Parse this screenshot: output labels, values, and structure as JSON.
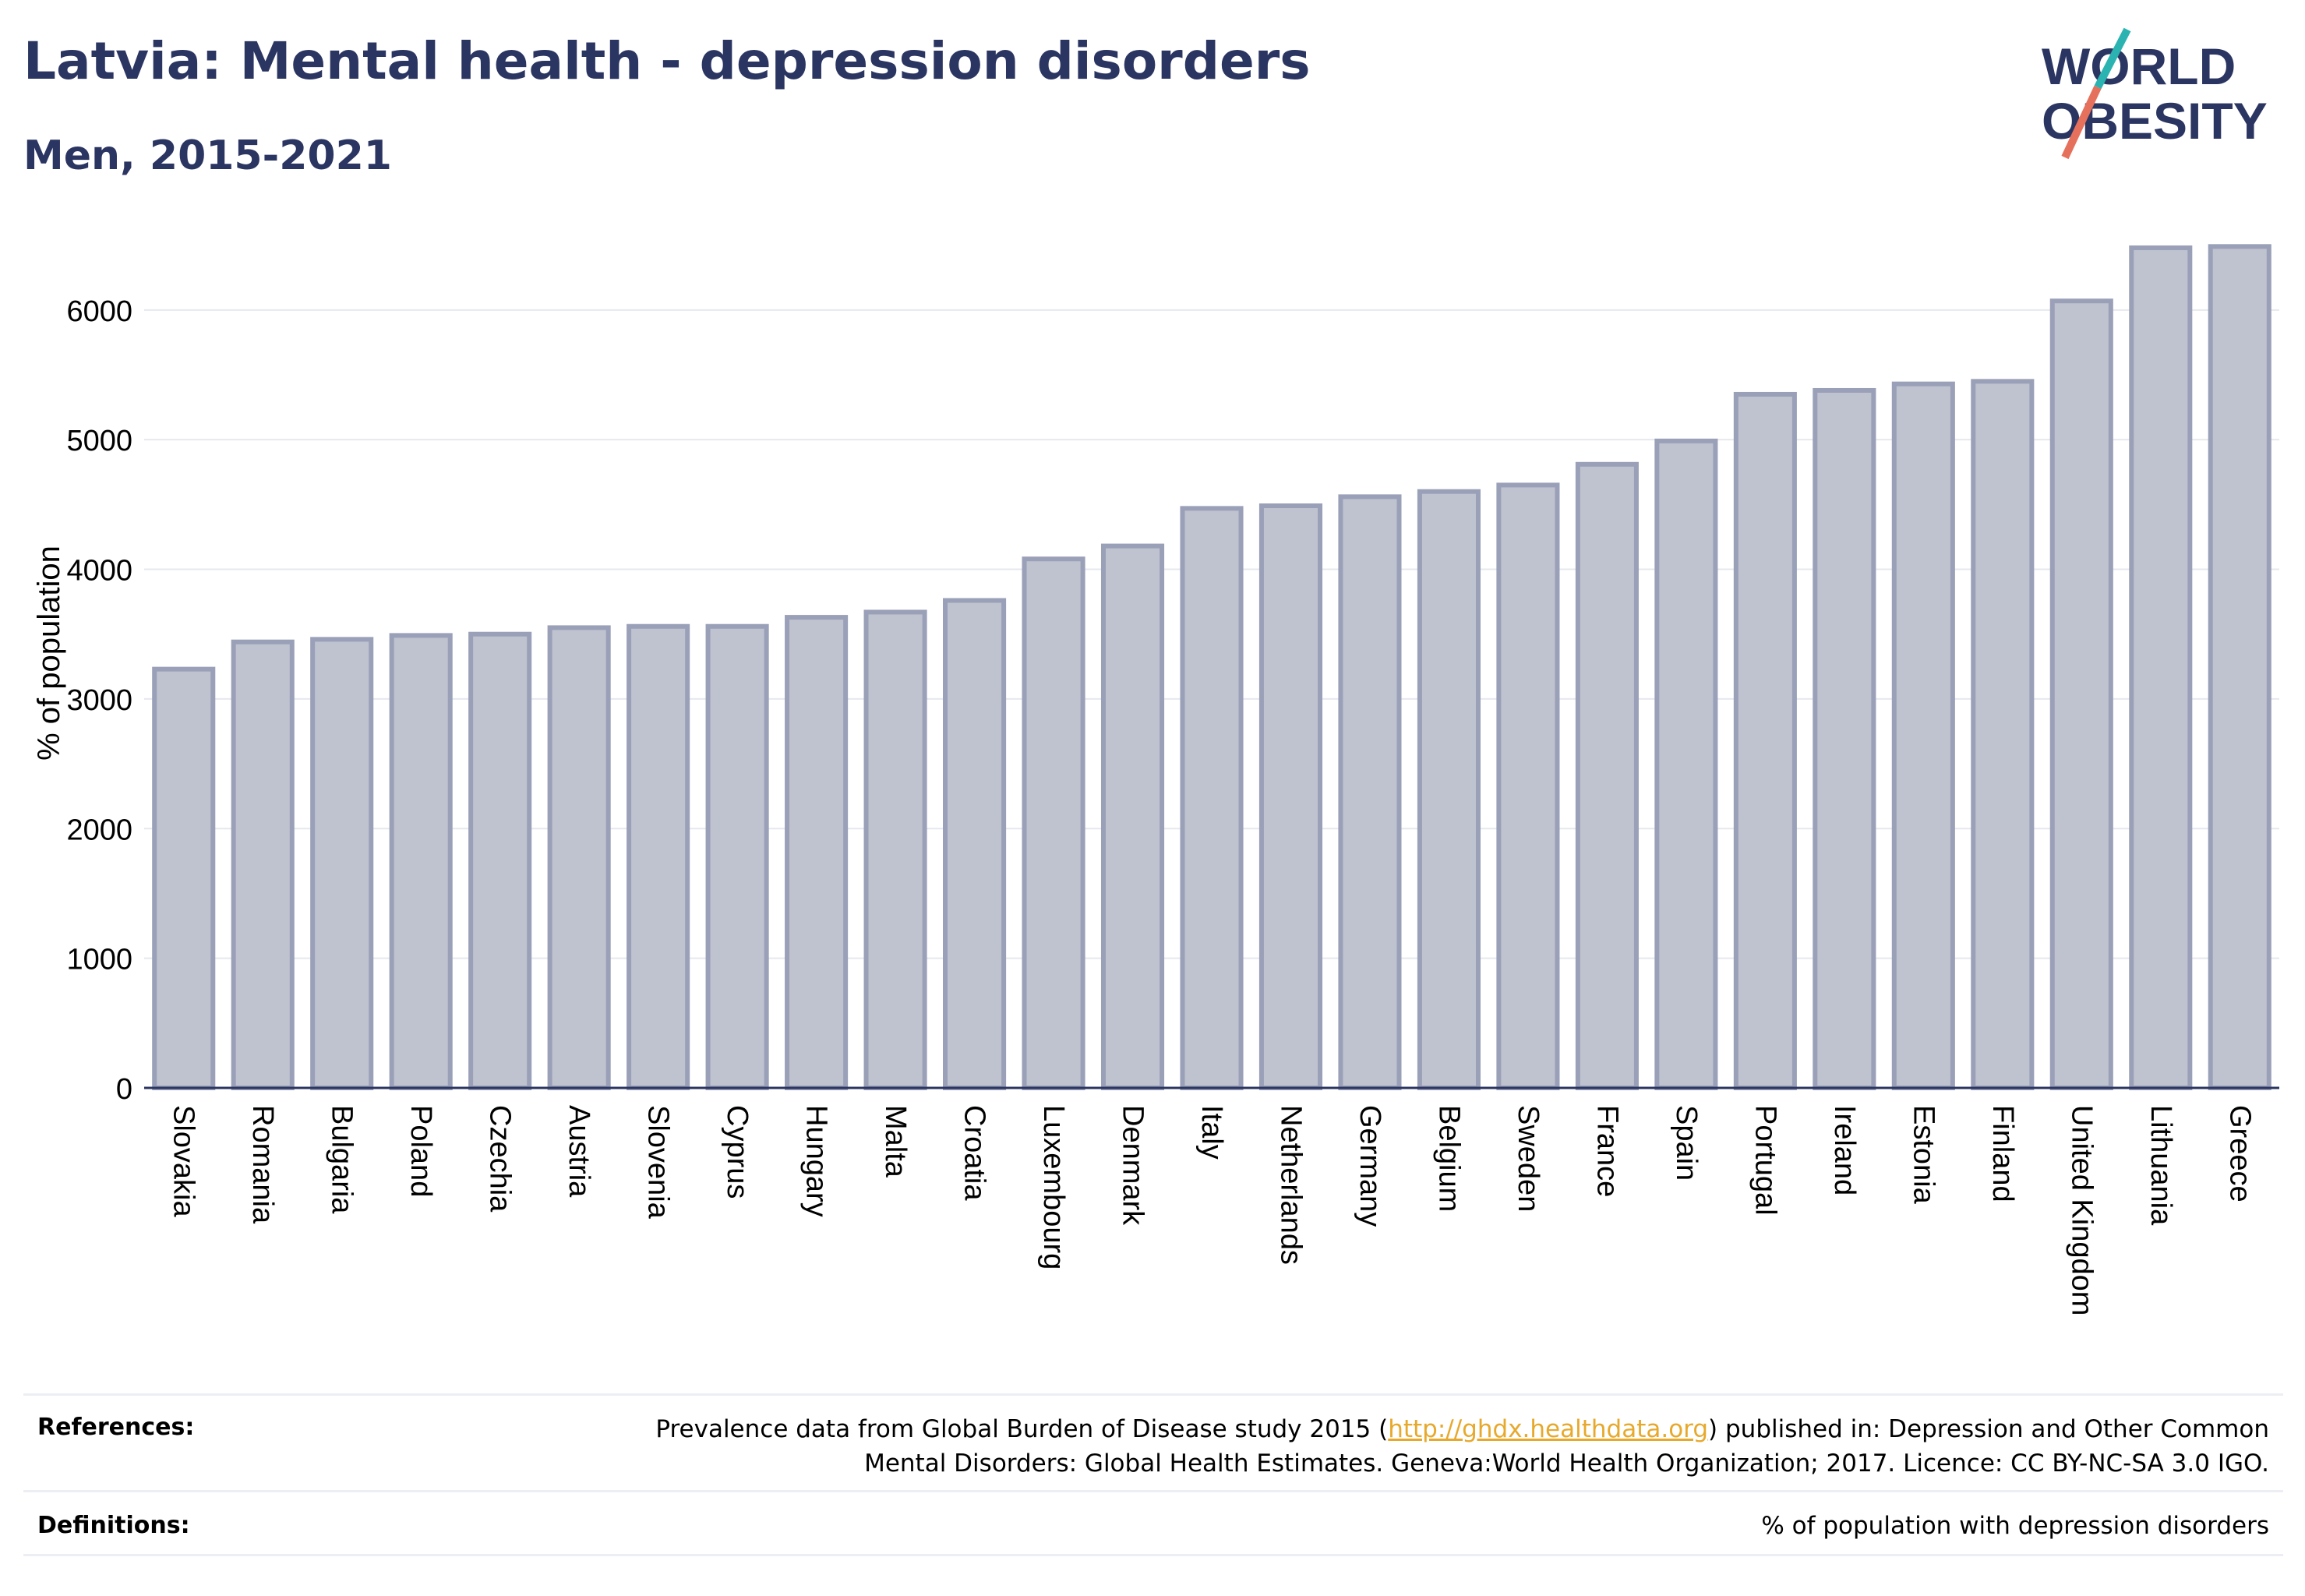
{
  "header": {
    "title": "Latvia: Mental health - depression disorders",
    "subtitle": "Men, 2015-2021"
  },
  "logo": {
    "line1": "WORLD",
    "line2": "OBESITY"
  },
  "colors": {
    "bar_fill": "#bfc2cf",
    "bar_stroke": "#9aa0b8",
    "title": "#2b3561",
    "grid": "#e6e8ee",
    "link": "#e7a92c",
    "logo_teal": "#2bb3b1",
    "logo_coral": "#e5705b"
  },
  "chart_data": {
    "type": "bar",
    "ylabel": "% of population",
    "ylim": [
      0,
      6600
    ],
    "yticks": [
      0,
      1000,
      2000,
      3000,
      4000,
      5000,
      6000
    ],
    "grid": true,
    "categories": [
      "Slovakia",
      "Romania",
      "Bulgaria",
      "Poland",
      "Czechia",
      "Austria",
      "Slovenia",
      "Cyprus",
      "Hungary",
      "Malta",
      "Croatia",
      "Luxembourg",
      "Denmark",
      "Italy",
      "Netherlands",
      "Germany",
      "Belgium",
      "Sweden",
      "France",
      "Spain",
      "Portugal",
      "Ireland",
      "Estonia",
      "Finland",
      "United Kingdom",
      "Lithuania",
      "Greece"
    ],
    "values": [
      3230,
      3440,
      3460,
      3490,
      3500,
      3550,
      3560,
      3560,
      3630,
      3670,
      3760,
      4080,
      4180,
      4470,
      4490,
      4560,
      4600,
      4650,
      4810,
      4990,
      5350,
      5380,
      5430,
      5450,
      6070,
      6480,
      6490
    ]
  },
  "footer": {
    "references_label": "References:",
    "references_line1_pre": "Prevalence data from Global Burden of Disease study 2015 (",
    "references_link": "http://ghdx.healthdata.org",
    "references_line1_post": ") published in: Depression and Other Common",
    "references_line2": "Mental Disorders: Global Health Estimates. Geneva:World Health Organization; 2017. Licence: CC BY-NC-SA 3.0 IGO.",
    "definitions_label": "Definitions:",
    "definitions_text": "% of population with depression disorders"
  }
}
